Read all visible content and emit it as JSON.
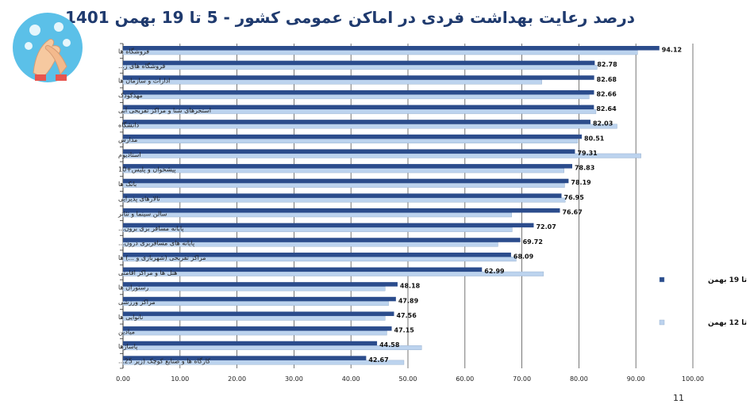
{
  "title": {
    "part1": "درصد رعایت بهداشت فردی در اماکن عمومی کشور",
    "part2": " - 5 تا 19 بهمن 1401"
  },
  "page_number": "11",
  "colors": {
    "series1": "#2b4c8c",
    "series2": "#bcd3ee",
    "title": "#1f3a6e",
    "title_accent": "#c0571d"
  },
  "logo": {
    "icon": "hand-washing-icon"
  },
  "chart_data": {
    "type": "bar",
    "orientation": "horizontal",
    "categories": [
      "فروشگاه ها",
      "فروشگاه های ز...",
      "ادارات و سازمان ها",
      "مهدکودک",
      "استخرهای شنا و مراکز تفریحی آبی",
      "دانشگاه",
      "مدارس",
      "استادیوم",
      "پیشخوان و پلیس+10",
      "بانک ها",
      "تالارهای پذیرایی",
      "سالن سینما و تئاتر",
      "پایانه مسافر بری برون...",
      "پایانه های مسافربری درون...",
      "مراکز تفریحی (شهربازی و ...) ها",
      "هتل ها و مراکز اقامتی",
      "رستوران ها",
      "مراکز ورزشی",
      "نانوایی ها",
      "میادین",
      "پاساژها",
      "کارگاه ها و صنایع کوچک (زیر 25..."
    ],
    "series": [
      {
        "name": "تا 19 بهمن",
        "values": [
          94.12,
          82.78,
          82.68,
          82.66,
          82.64,
          82.03,
          80.51,
          79.31,
          78.83,
          78.19,
          76.95,
          76.67,
          72.07,
          69.72,
          68.09,
          62.99,
          48.18,
          47.89,
          47.56,
          47.15,
          44.58,
          42.67
        ]
      },
      {
        "name": "تا 12 بهمن",
        "values": [
          90.3,
          83.2,
          73.5,
          81.8,
          83.0,
          86.7,
          79.8,
          90.9,
          77.4,
          77.5,
          77.6,
          68.2,
          68.3,
          65.8,
          69.0,
          73.8,
          46.0,
          46.6,
          46.0,
          46.3,
          52.4,
          49.3
        ]
      }
    ],
    "xlim": [
      0,
      100
    ],
    "xticks": [
      "0.00",
      "10.00",
      "20.00",
      "30.00",
      "40.00",
      "50.00",
      "60.00",
      "70.00",
      "80.00",
      "90.00",
      "100.00"
    ],
    "grid": true,
    "legend_position": "right"
  }
}
